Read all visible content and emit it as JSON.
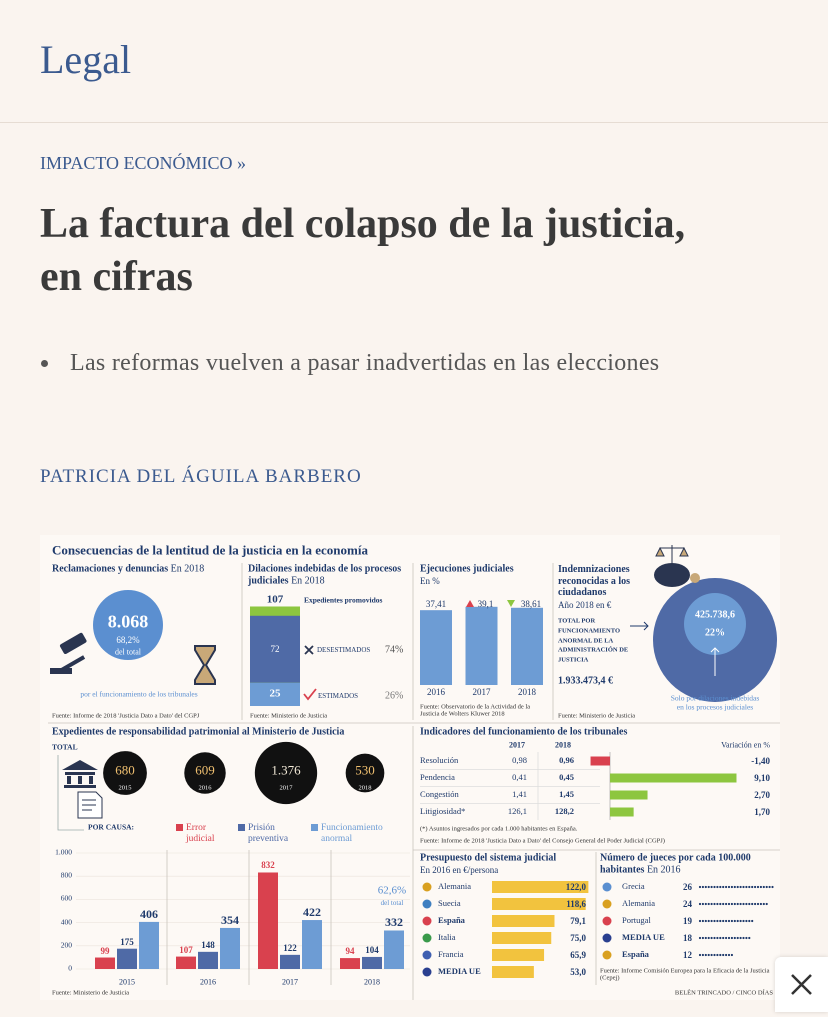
{
  "header": {
    "section": "Legal"
  },
  "article": {
    "kicker": "IMPACTO ECONÓMICO »",
    "title": "La factura del colapso de la justicia, en cifras",
    "bullets": [
      "Las reformas vuelven a pasar inadvertidas en las elecciones"
    ],
    "author": "PATRICIA DEL ÁGUILA BARBERO"
  },
  "infographic": {
    "title": "Consecuencias de la lentitud de la justicia en la economía",
    "claims": {
      "title": "Reclamaciones y denuncias",
      "period": "En 2018",
      "total": {
        "value": 8068,
        "label": "8.068"
      },
      "share": "68,2%",
      "share_label": "del total",
      "caption": "por el funcionamiento de los tribunales",
      "source": "Fuente: Informe de 2018 'Justicia Dato a Dato' del CGPJ"
    },
    "delays": {
      "title": "Dilaciones indebidas de los procesos judiciales",
      "period": "En 2018",
      "promoted": 107,
      "promoted_label": "Expedientes promovidos",
      "rejected": 72,
      "rejected_label": "DESESTIMADOS",
      "rejected_share": "74%",
      "estimated": 25,
      "estimated_label": "ESTIMADOS",
      "estimated_share": "26%",
      "source": "Fuente: Ministerio de Justicia"
    },
    "executions": {
      "title": "Ejecuciones judiciales",
      "unit": "En %",
      "categories": [
        "2016",
        "2017",
        "2018"
      ],
      "values": [
        {
          "value": 37.41,
          "label": "37,41"
        },
        {
          "value": 39.1,
          "label": "39,1"
        },
        {
          "value": 38.61,
          "label": "38,61"
        }
      ],
      "source": "Fuente: Observatorio de la Actividad de la Justicia de Wolters Kluwer 2018"
    },
    "compensation": {
      "title": "Indemnizaciones reconocidas a los ciudadanos",
      "period": "Año 2018 en €",
      "total_label": "TOTAL POR FUNCIONAMIENTO ANORMAL DE LA ADMINISTRACIÓN DE JUSTICIA",
      "total": {
        "value": 1933473.4,
        "label": "1.933.473,4 €"
      },
      "delays": {
        "value": 425738.6,
        "label": "425.738,6"
      },
      "delays_share": "22%",
      "delays_caption": "Solo por dilaciones indebidas en los procesos judiciales",
      "source": "Fuente: Ministerio de Justicia"
    },
    "liability": {
      "title": "Expedientes de responsabilidad patrimonial al Ministerio de Justicia",
      "total_label": "TOTAL",
      "years": [
        "2015",
        "2016",
        "2017",
        "2018"
      ],
      "totals": [
        680,
        609,
        {
          "value": 1376,
          "label": "1.376"
        },
        530
      ],
      "by_cause_label": "POR CAUSA:",
      "series": [
        {
          "name": "Error judicial",
          "color": "#d9414e",
          "values": [
            99,
            107,
            832,
            94
          ]
        },
        {
          "name": "Prisión preventiva",
          "color": "#4f6aa6",
          "values": [
            175,
            148,
            122,
            104
          ]
        },
        {
          "name": "Funcionamiento anormal",
          "color": "#6d9cd4",
          "values": [
            406,
            354,
            422,
            332
          ]
        }
      ],
      "ylim": [
        0,
        1000
      ],
      "yticks": [
        0,
        200,
        400,
        600,
        800,
        {
          "value": 1000,
          "label": "1.000"
        }
      ],
      "note_share": "62,6%",
      "note_label": "del total",
      "source": "Fuente: Ministerio de Justicia"
    },
    "indicators": {
      "title": "Indicadores del funcionamiento de los tribunales",
      "columns": [
        "2017",
        "2018"
      ],
      "variation_label": "Variación en %",
      "rows": [
        {
          "name": "Resolución",
          "v2017": {
            "value": 0.98,
            "label": "0,98"
          },
          "v2018": {
            "value": 0.96,
            "label": "0,96"
          },
          "variation": {
            "value": -1.4,
            "label": "-1,40"
          }
        },
        {
          "name": "Pendencia",
          "v2017": {
            "value": 0.41,
            "label": "0,41"
          },
          "v2018": {
            "value": 0.45,
            "label": "0,45"
          },
          "variation": {
            "value": 9.1,
            "label": "9,10"
          }
        },
        {
          "name": "Congestión",
          "v2017": {
            "value": 1.41,
            "label": "1,41"
          },
          "v2018": {
            "value": 1.45,
            "label": "1,45"
          },
          "variation": {
            "value": 2.7,
            "label": "2,70"
          }
        },
        {
          "name": "Litigiosidad*",
          "v2017": {
            "value": 126.1,
            "label": "126,1"
          },
          "v2018": {
            "value": 128.2,
            "label": "128,2"
          },
          "variation": {
            "value": 1.7,
            "label": "1,70"
          }
        }
      ],
      "note": "(*) Asuntos ingresados por cada 1.000 habitantes en España.",
      "source": "Fuente: Informe de 2018 'Justicia Dato a Dato' del Consejo General del Poder Judicial (CGPJ)"
    },
    "budget": {
      "title": "Presupuesto del sistema judicial",
      "period": "En 2016 en €/persona",
      "countries": [
        "Alemania",
        "Suecia",
        "España",
        "Italia",
        "Francia",
        "MEDIA UE"
      ],
      "values": [
        {
          "value": 122.0,
          "label": "122,0"
        },
        {
          "value": 118.6,
          "label": "118,6"
        },
        {
          "value": 79.1,
          "label": "79,1"
        },
        {
          "value": 75.0,
          "label": "75,0"
        },
        {
          "value": 65.9,
          "label": "65,9"
        },
        {
          "value": 53.0,
          "label": "53,0"
        }
      ]
    },
    "judges": {
      "title": "Número de jueces por cada 100.000 habitantes",
      "period": "En 2016",
      "countries": [
        "Grecia",
        "Alemania",
        "Portugal",
        "MEDIA UE",
        "España"
      ],
      "values": [
        26,
        24,
        19,
        18,
        12
      ],
      "source": "Fuente: Informe Comisión Europea para la Eficacia de la Justicia (Cepej)"
    },
    "credit": "BELÉN TRINCADO / CINCO DÍAS"
  }
}
